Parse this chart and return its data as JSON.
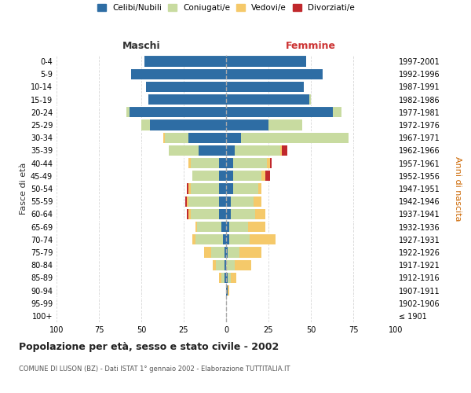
{
  "age_groups": [
    "100+",
    "95-99",
    "90-94",
    "85-89",
    "80-84",
    "75-79",
    "70-74",
    "65-69",
    "60-64",
    "55-59",
    "50-54",
    "45-49",
    "40-44",
    "35-39",
    "30-34",
    "25-29",
    "20-24",
    "15-19",
    "10-14",
    "5-9",
    "0-4"
  ],
  "birth_years": [
    "≤ 1901",
    "1902-1906",
    "1907-1911",
    "1912-1916",
    "1917-1921",
    "1922-1926",
    "1927-1931",
    "1932-1936",
    "1937-1941",
    "1942-1946",
    "1947-1951",
    "1952-1956",
    "1957-1961",
    "1962-1966",
    "1967-1971",
    "1972-1976",
    "1977-1981",
    "1982-1986",
    "1987-1991",
    "1992-1996",
    "1997-2001"
  ],
  "maschi": {
    "celibi": [
      0,
      0,
      0,
      1,
      1,
      1,
      2,
      3,
      4,
      4,
      4,
      4,
      4,
      16,
      22,
      45,
      57,
      46,
      47,
      56,
      48
    ],
    "coniugati": [
      0,
      0,
      0,
      2,
      5,
      8,
      16,
      14,
      17,
      18,
      17,
      16,
      17,
      18,
      14,
      5,
      2,
      0,
      0,
      0,
      0
    ],
    "vedovi": [
      0,
      0,
      0,
      1,
      2,
      4,
      2,
      1,
      1,
      1,
      1,
      0,
      1,
      0,
      1,
      0,
      0,
      0,
      0,
      0,
      0
    ],
    "divorziati": [
      0,
      0,
      0,
      0,
      0,
      0,
      0,
      0,
      1,
      1,
      1,
      0,
      0,
      0,
      0,
      0,
      0,
      0,
      0,
      0,
      0
    ]
  },
  "femmine": {
    "nubili": [
      0,
      0,
      1,
      1,
      0,
      1,
      2,
      2,
      3,
      3,
      4,
      4,
      4,
      5,
      9,
      25,
      63,
      49,
      46,
      57,
      47
    ],
    "coniugate": [
      0,
      0,
      0,
      2,
      5,
      7,
      12,
      11,
      14,
      13,
      15,
      17,
      20,
      27,
      63,
      20,
      5,
      1,
      0,
      0,
      0
    ],
    "vedove": [
      0,
      0,
      1,
      3,
      10,
      13,
      15,
      10,
      6,
      5,
      2,
      2,
      2,
      1,
      0,
      0,
      0,
      0,
      0,
      0,
      0
    ],
    "divorziate": [
      0,
      0,
      0,
      0,
      0,
      0,
      0,
      0,
      0,
      0,
      0,
      3,
      1,
      3,
      0,
      0,
      0,
      0,
      0,
      0,
      0
    ]
  },
  "colors": {
    "celibi_nubili": "#2e6da4",
    "coniugati": "#c8dba0",
    "vedovi": "#f5c96a",
    "divorziati": "#c0282c"
  },
  "title": "Popolazione per età, sesso e stato civile - 2002",
  "subtitle": "COMUNE DI LUSON (BZ) - Dati ISTAT 1° gennaio 2002 - Elaborazione TUTTITALIA.IT",
  "ylabel_left": "Fasce di età",
  "ylabel_right": "Anni di nascita",
  "legend_labels": [
    "Celibi/Nubili",
    "Coniugati/e",
    "Vedovi/e",
    "Divorziati/e"
  ],
  "maschi_label": "Maschi",
  "femmine_label": "Femmine",
  "background_color": "#ffffff",
  "grid_color": "#cccccc"
}
